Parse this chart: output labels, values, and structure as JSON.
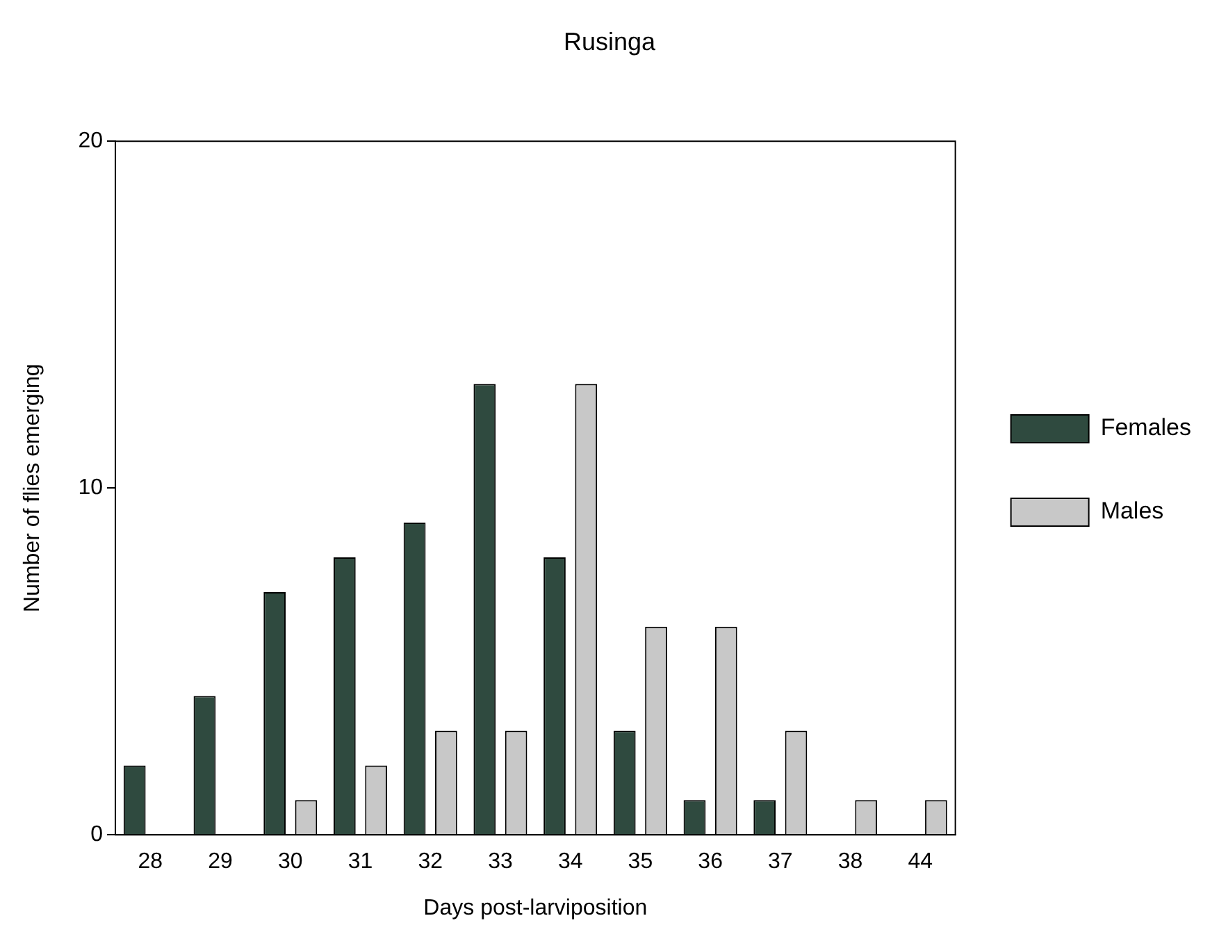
{
  "chart_data": {
    "type": "bar",
    "title": "Rusinga",
    "xlabel": "Days post-larviposition",
    "ylabel": "Number of flies emerging",
    "categories": [
      "28",
      "29",
      "30",
      "31",
      "32",
      "33",
      "34",
      "35",
      "36",
      "37",
      "38",
      "44"
    ],
    "series": [
      {
        "name": "Females",
        "color": "#2f4a3f",
        "values": [
          2,
          4,
          7,
          8,
          9,
          13,
          8,
          3,
          1,
          1,
          0,
          0
        ]
      },
      {
        "name": "Males",
        "color": "#c8c8c8",
        "values": [
          0,
          0,
          1,
          2,
          3,
          3,
          13,
          6,
          6,
          3,
          1,
          1
        ]
      }
    ],
    "ylim": [
      0,
      20
    ],
    "yticks": [
      0,
      10,
      20
    ],
    "grid": false,
    "legend": "right"
  }
}
